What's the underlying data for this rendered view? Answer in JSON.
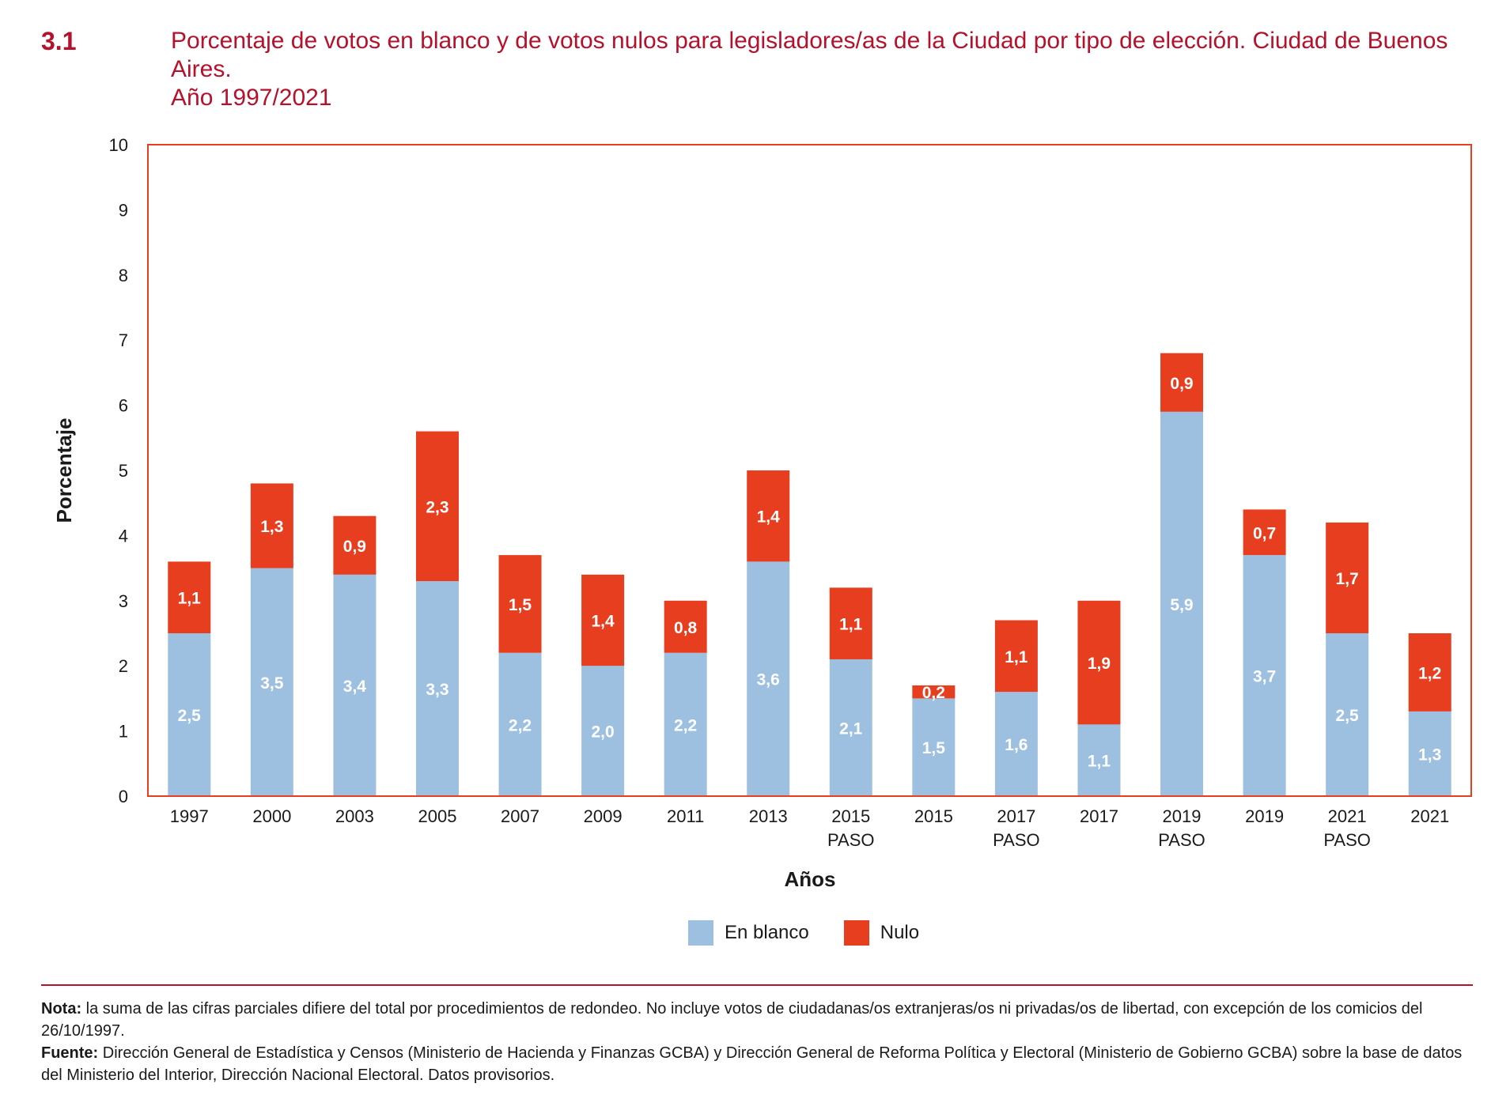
{
  "header": {
    "figure_number": "3.1",
    "title_line1": "Porcentaje de votos en blanco y de votos nulos para legisladores/as de la Ciudad por tipo de elección. Ciudad de Buenos Aires.",
    "title_line2": "Año 1997/2021"
  },
  "colors": {
    "blanco": "#9dc0e1",
    "nulo": "#e63e1f",
    "frame": "#e63e1f",
    "accent": "#b5112b"
  },
  "chart_data": {
    "type": "bar",
    "stacked": true,
    "categories": [
      [
        "1997"
      ],
      [
        "2000"
      ],
      [
        "2003"
      ],
      [
        "2005"
      ],
      [
        "2007"
      ],
      [
        "2009"
      ],
      [
        "2011"
      ],
      [
        "2013"
      ],
      [
        "2015",
        "PASO"
      ],
      [
        "2015"
      ],
      [
        "2017",
        "PASO"
      ],
      [
        "2017"
      ],
      [
        "2019",
        "PASO"
      ],
      [
        "2019"
      ],
      [
        "2021",
        "PASO"
      ],
      [
        "2021"
      ]
    ],
    "series": [
      {
        "name": "En blanco",
        "values": [
          2.5,
          3.5,
          3.4,
          3.3,
          2.2,
          2.0,
          2.2,
          3.6,
          2.1,
          1.5,
          1.6,
          1.1,
          5.9,
          3.7,
          2.5,
          1.3
        ],
        "labels": [
          "2,5",
          "3,5",
          "3,4",
          "3,3",
          "2,2",
          "2,0",
          "2,2",
          "3,6",
          "2,1",
          "1,5",
          "1,6",
          "1,1",
          "5,9",
          "3,7",
          "2,5",
          "1,3"
        ]
      },
      {
        "name": "Nulo",
        "values": [
          1.1,
          1.3,
          0.9,
          2.3,
          1.5,
          1.4,
          0.8,
          1.4,
          1.1,
          0.2,
          1.1,
          1.9,
          0.9,
          0.7,
          1.7,
          1.2
        ],
        "labels": [
          "1,1",
          "1,3",
          "0,9",
          "2,3",
          "1,5",
          "1,4",
          "0,8",
          "1,4",
          "1,1",
          "0,2",
          "1,1",
          "1,9",
          "0,9",
          "0,7",
          "1,7",
          "1,2"
        ]
      }
    ],
    "title": "Porcentaje de votos en blanco y de votos nulos para legisladores/as de la Ciudad por tipo de elección. Ciudad de Buenos Aires. Año 1997/2021",
    "xlabel": "Años",
    "ylabel": "Porcentaje",
    "ylim": [
      0,
      10
    ],
    "yticks": [
      "0",
      "1",
      "2",
      "3",
      "4",
      "5",
      "6",
      "7",
      "8",
      "9",
      "10"
    ],
    "grid": false,
    "legend_position": "bottom-center"
  },
  "legend": {
    "blanco_label": "En blanco",
    "nulo_label": "Nulo"
  },
  "notes": {
    "nota_label": "Nota:",
    "nota_text": " la suma de las cifras parciales difiere del total por procedimientos de redondeo. No incluye votos de ciudadanas/os extranjeras/os ni privadas/os de libertad, con excepción de los comicios del 26/10/1997.",
    "fuente_label": "Fuente:",
    "fuente_text": " Dirección General de Estadística y Censos (Ministerio de Hacienda y Finanzas GCBA) y Dirección General de Reforma Política y Electoral (Ministerio de Gobierno GCBA) sobre la base de datos del Ministerio del Interior, Dirección Nacional Electoral. Datos provisorios."
  }
}
